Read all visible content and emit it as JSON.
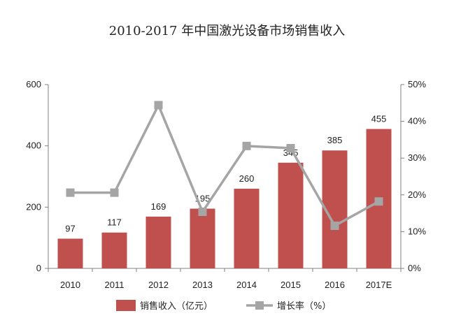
{
  "chart_data": {
    "type": "bar",
    "title": "2010-2017 年中国激光设备市场销售收入",
    "categories": [
      "2010",
      "2011",
      "2012",
      "2013",
      "2014",
      "2015",
      "2016",
      "2017E"
    ],
    "series": [
      {
        "name": "销售收入（亿元）",
        "type": "bar",
        "axis": "left",
        "values": [
          97,
          117,
          169,
          195,
          260,
          345,
          385,
          455
        ],
        "data_labels": [
          "97",
          "117",
          "169",
          "195",
          "260",
          "345",
          "385",
          "455"
        ],
        "color": "#c0504d"
      },
      {
        "name": "增长率（%）",
        "type": "line",
        "axis": "right",
        "values": [
          20.6,
          20.6,
          44.4,
          15.4,
          33.3,
          32.7,
          11.6,
          18.2
        ],
        "color": "#a5a5a5"
      }
    ],
    "y_left": {
      "min": 0,
      "max": 600,
      "ticks": [
        "0",
        "200",
        "400",
        "600"
      ]
    },
    "y_right": {
      "min": 0,
      "max": 50,
      "ticks": [
        "0%",
        "10%",
        "20%",
        "30%",
        "40%",
        "50%"
      ]
    },
    "grid": false,
    "legend": "bottom"
  }
}
